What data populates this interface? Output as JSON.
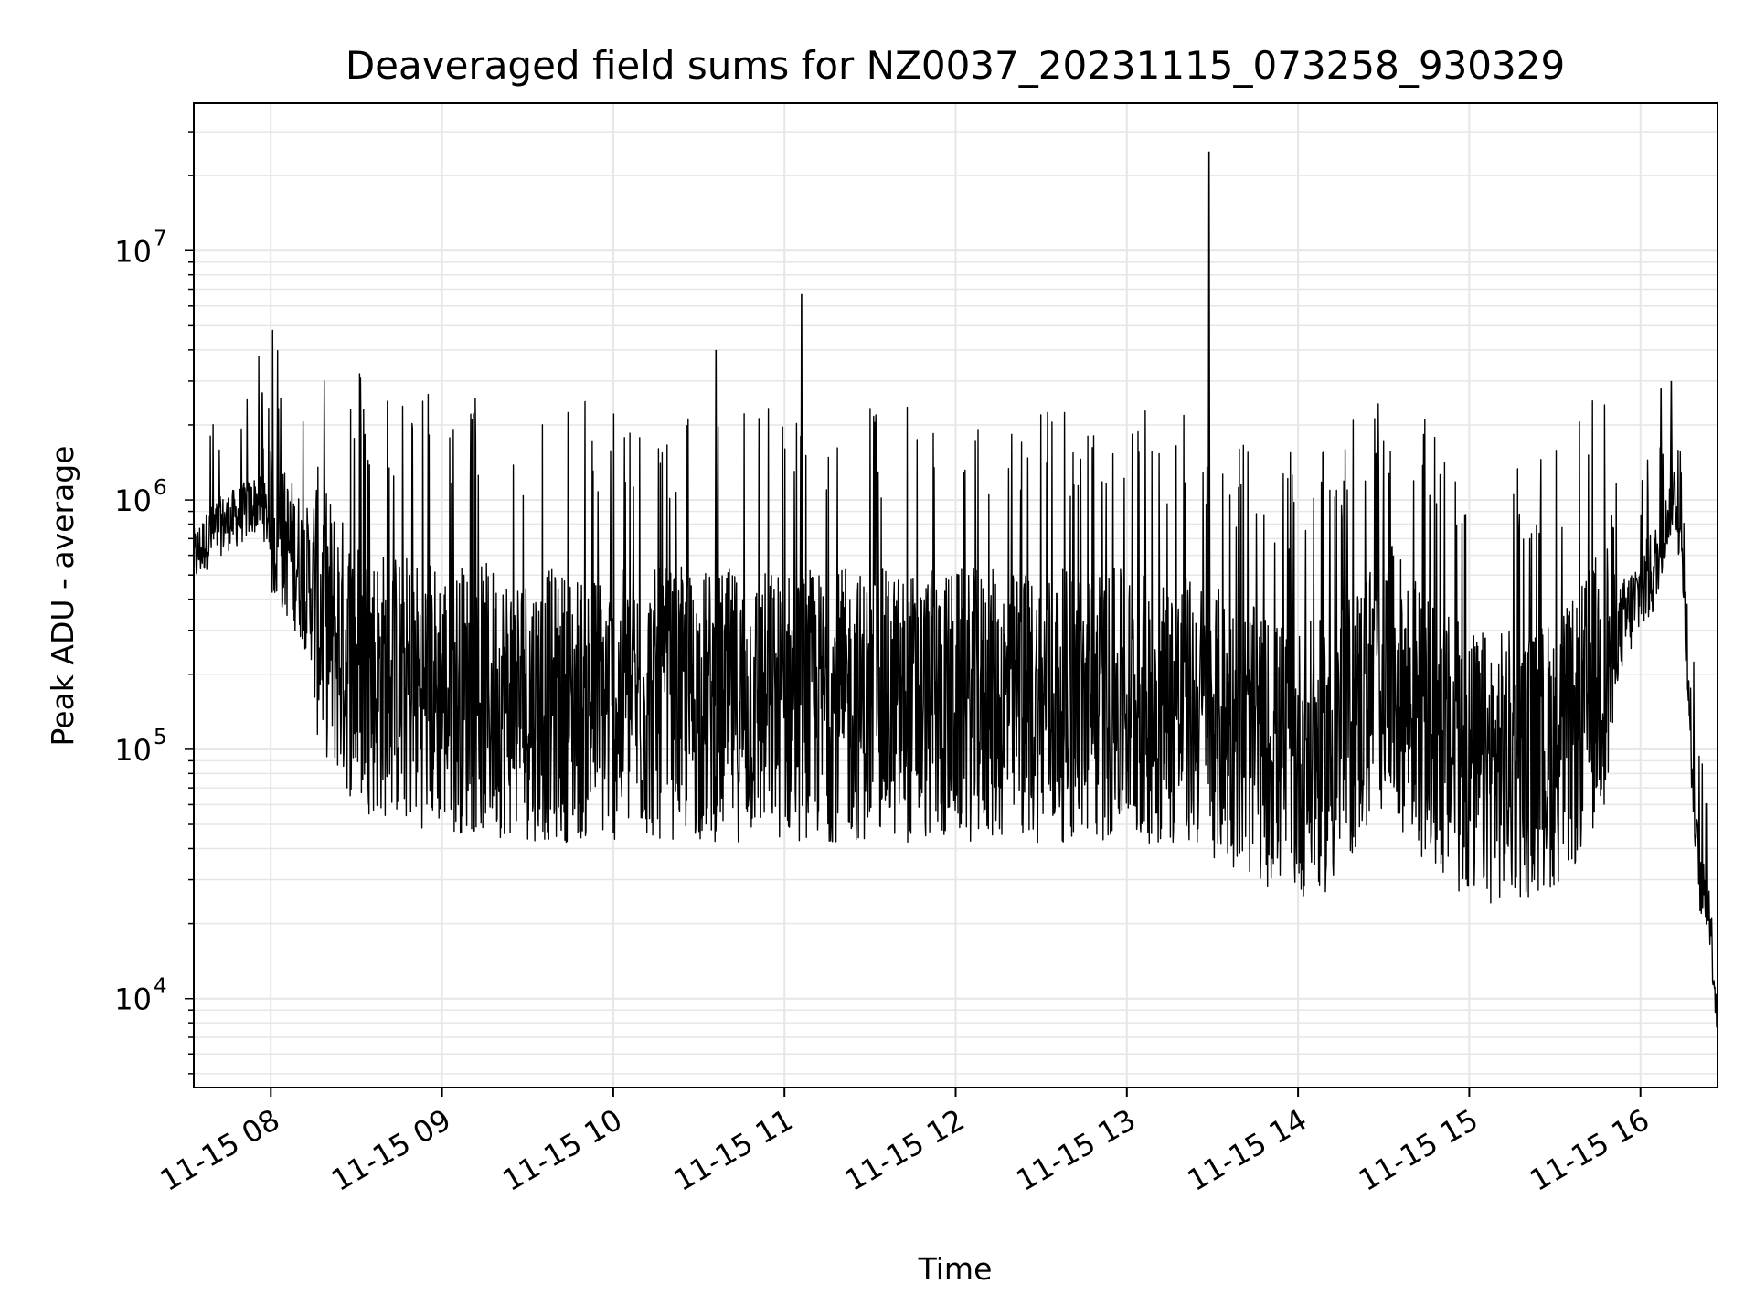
{
  "chart_data": {
    "type": "line",
    "title": "Deaveraged field sums for NZ0037_20231115_073258_930329",
    "xlabel": "Time",
    "ylabel": "Peak ADU - average",
    "y_scale": "log",
    "x_tick_labels": [
      "11-15 08",
      "11-15 09",
      "11-15 10",
      "11-15 11",
      "11-15 12",
      "11-15 13",
      "11-15 14",
      "11-15 15",
      "11-15 16"
    ],
    "x_tick_hours": [
      8,
      9,
      10,
      11,
      12,
      13,
      14,
      15,
      16
    ],
    "xlim_hours": [
      7.55,
      16.45
    ],
    "y_ticks": [
      {
        "value": 10000,
        "base": "10",
        "exp": "4"
      },
      {
        "value": 100000,
        "base": "10",
        "exp": "5"
      },
      {
        "value": 1000000,
        "base": "10",
        "exp": "6"
      },
      {
        "value": 10000000,
        "base": "10",
        "exp": "7"
      }
    ],
    "ylim": [
      4400,
      39000000
    ],
    "grid": true,
    "line_color": "#000000",
    "grid_color": "#e6e6e6",
    "series": [
      {
        "x_hours": [
          7.55,
          7.6,
          7.65,
          7.7,
          7.75,
          7.8,
          7.85,
          7.9,
          7.93,
          7.96,
          8.0,
          8.05,
          8.1,
          8.15,
          8.2,
          8.25,
          8.3,
          8.35,
          8.4,
          8.45,
          8.5,
          8.6,
          8.7,
          8.8,
          8.9,
          9.0,
          9.2,
          9.4,
          9.6,
          9.8,
          10.0,
          10.2,
          10.4,
          10.6,
          10.8,
          11.0,
          11.2,
          11.4,
          11.6,
          11.8,
          12.0,
          12.2,
          12.4,
          12.6,
          12.8,
          13.0,
          13.2,
          13.4,
          13.6,
          13.8,
          14.0,
          14.2,
          14.4,
          14.5,
          14.6,
          14.8,
          15.0,
          15.2,
          15.4,
          15.6,
          15.7,
          15.8,
          15.9,
          16.0,
          16.1,
          16.15,
          16.2,
          16.25,
          16.3,
          16.35,
          16.4,
          16.45
        ],
        "values": [
          580000,
          650000,
          720000,
          780000,
          820000,
          850000,
          900000,
          950000,
          1000000,
          900000,
          800000,
          720000,
          650000,
          580000,
          500000,
          420000,
          350000,
          300000,
          260000,
          230000,
          210000,
          190000,
          180000,
          175000,
          170000,
          165000,
          160000,
          155000,
          150000,
          150000,
          148000,
          150000,
          152000,
          150000,
          150000,
          152000,
          150000,
          150000,
          150000,
          148000,
          150000,
          150000,
          150000,
          150000,
          148000,
          150000,
          145000,
          140000,
          120000,
          100000,
          90000,
          95000,
          160000,
          200000,
          170000,
          110000,
          85000,
          85000,
          90000,
          110000,
          150000,
          220000,
          320000,
          420000,
          550000,
          800000,
          1100000,
          500000,
          80000,
          28000,
          24000,
          8000
        ]
      }
    ],
    "spikes": [
      {
        "x_hour": 10.6,
        "value": 4000000
      },
      {
        "x_hour": 11.1,
        "value": 6700000
      },
      {
        "x_hour": 13.48,
        "value": 25000000
      },
      {
        "x_hour": 16.12,
        "value": 2800000
      },
      {
        "x_hour": 16.18,
        "value": 3000000
      },
      {
        "x_hour": 7.95,
        "value": 2700000
      }
    ]
  }
}
